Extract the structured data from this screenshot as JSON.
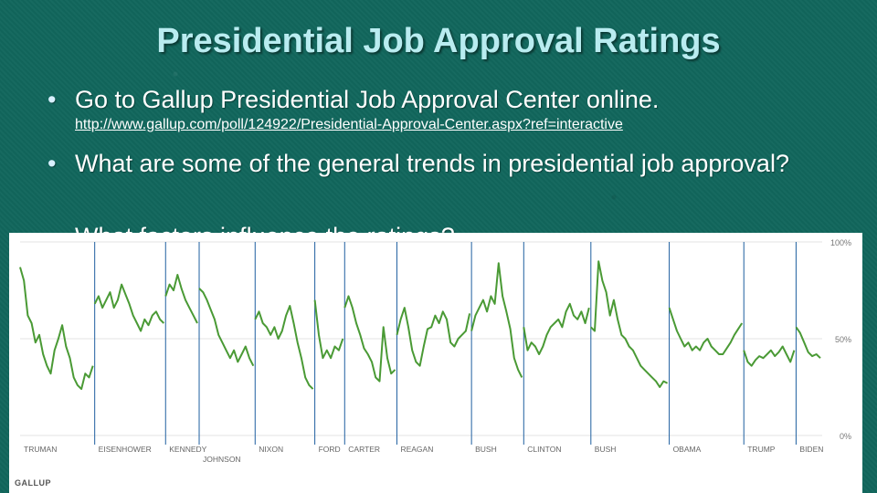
{
  "slide": {
    "title": "Presidential Job Approval Ratings",
    "bullets": [
      "Go to Gallup Presidential Job Approval Center online.",
      "What are some of the general trends in presidential job approval?",
      "What factors influence the ratings?"
    ],
    "link": "http://www.gallup.com/poll/124922/Presidential-Approval-Center.aspx?ref=interactive",
    "bullet_color": "#d9f0ff",
    "title_color": "#b9ecf0"
  },
  "chart_data": {
    "type": "line",
    "logo": "GALLUP",
    "y_ticks": [
      "100%",
      "50%",
      "0%"
    ],
    "ylim": [
      0,
      100
    ],
    "grid": true,
    "line_color": "#4a9a35",
    "presidents": [
      {
        "name": "TRUMAN",
        "row": 1
      },
      {
        "name": "EISENHOWER",
        "row": 1
      },
      {
        "name": "KENNEDY",
        "row": 1
      },
      {
        "name": "JOHNSON",
        "row": 2
      },
      {
        "name": "NIXON",
        "row": 1
      },
      {
        "name": "FORD",
        "row": 1
      },
      {
        "name": "CARTER",
        "row": 1
      },
      {
        "name": "REAGAN",
        "row": 1
      },
      {
        "name": "BUSH",
        "row": 1
      },
      {
        "name": "CLINTON",
        "row": 1
      },
      {
        "name": "BUSH",
        "row": 1
      },
      {
        "name": "OBAMA",
        "row": 1
      },
      {
        "name": "TRUMP",
        "row": 1
      },
      {
        "name": "BIDEN",
        "row": 1
      }
    ],
    "series": [
      {
        "president": "TRUMAN",
        "values": [
          87,
          80,
          62,
          58,
          48,
          52,
          42,
          36,
          32,
          44,
          50,
          57,
          46,
          40,
          30,
          26,
          24,
          32,
          30,
          36
        ]
      },
      {
        "president": "EISENHOWER",
        "values": [
          68,
          72,
          66,
          70,
          74,
          66,
          70,
          78,
          73,
          68,
          62,
          58,
          54,
          60,
          57,
          62,
          64,
          60,
          58
        ]
      },
      {
        "president": "KENNEDY",
        "values": [
          72,
          78,
          75,
          83,
          76,
          70,
          66,
          62,
          58
        ]
      },
      {
        "president": "JOHNSON",
        "values": [
          76,
          74,
          70,
          65,
          60,
          52,
          48,
          44,
          40,
          44,
          38,
          42,
          46,
          40,
          36
        ]
      },
      {
        "president": "NIXON",
        "values": [
          60,
          64,
          58,
          56,
          52,
          56,
          50,
          54,
          62,
          67,
          58,
          48,
          40,
          30,
          26,
          24
        ]
      },
      {
        "president": "FORD",
        "values": [
          70,
          52,
          40,
          44,
          40,
          46,
          44,
          50
        ]
      },
      {
        "president": "CARTER",
        "values": [
          66,
          72,
          66,
          58,
          52,
          45,
          42,
          38,
          30,
          28,
          56,
          40,
          32,
          34
        ]
      },
      {
        "president": "REAGAN",
        "values": [
          52,
          60,
          66,
          56,
          44,
          38,
          36,
          46,
          55,
          56,
          62,
          58,
          64,
          60,
          48,
          46,
          50,
          52,
          54,
          63
        ]
      },
      {
        "president": "BUSH",
        "values": [
          54,
          62,
          66,
          70,
          64,
          72,
          68,
          89,
          72,
          64,
          55,
          40,
          34,
          30
        ]
      },
      {
        "president": "CLINTON",
        "values": [
          56,
          44,
          48,
          46,
          42,
          46,
          52,
          56,
          58,
          60,
          56,
          64,
          68,
          62,
          60,
          64,
          58,
          66
        ]
      },
      {
        "president": "BUSH",
        "values": [
          56,
          54,
          90,
          80,
          74,
          62,
          70,
          60,
          52,
          50,
          46,
          44,
          40,
          36,
          34,
          32,
          30,
          28,
          25,
          28,
          27
        ]
      },
      {
        "president": "OBAMA",
        "values": [
          66,
          60,
          54,
          50,
          46,
          48,
          44,
          46,
          44,
          48,
          50,
          46,
          44,
          42,
          42,
          45,
          48,
          52,
          55,
          58
        ]
      },
      {
        "president": "TRUMP",
        "values": [
          44,
          38,
          36,
          39,
          41,
          40,
          42,
          44,
          41,
          43,
          46,
          42,
          38,
          44
        ]
      },
      {
        "president": "BIDEN",
        "values": [
          56,
          53,
          48,
          43,
          41,
          42,
          40
        ]
      }
    ]
  }
}
